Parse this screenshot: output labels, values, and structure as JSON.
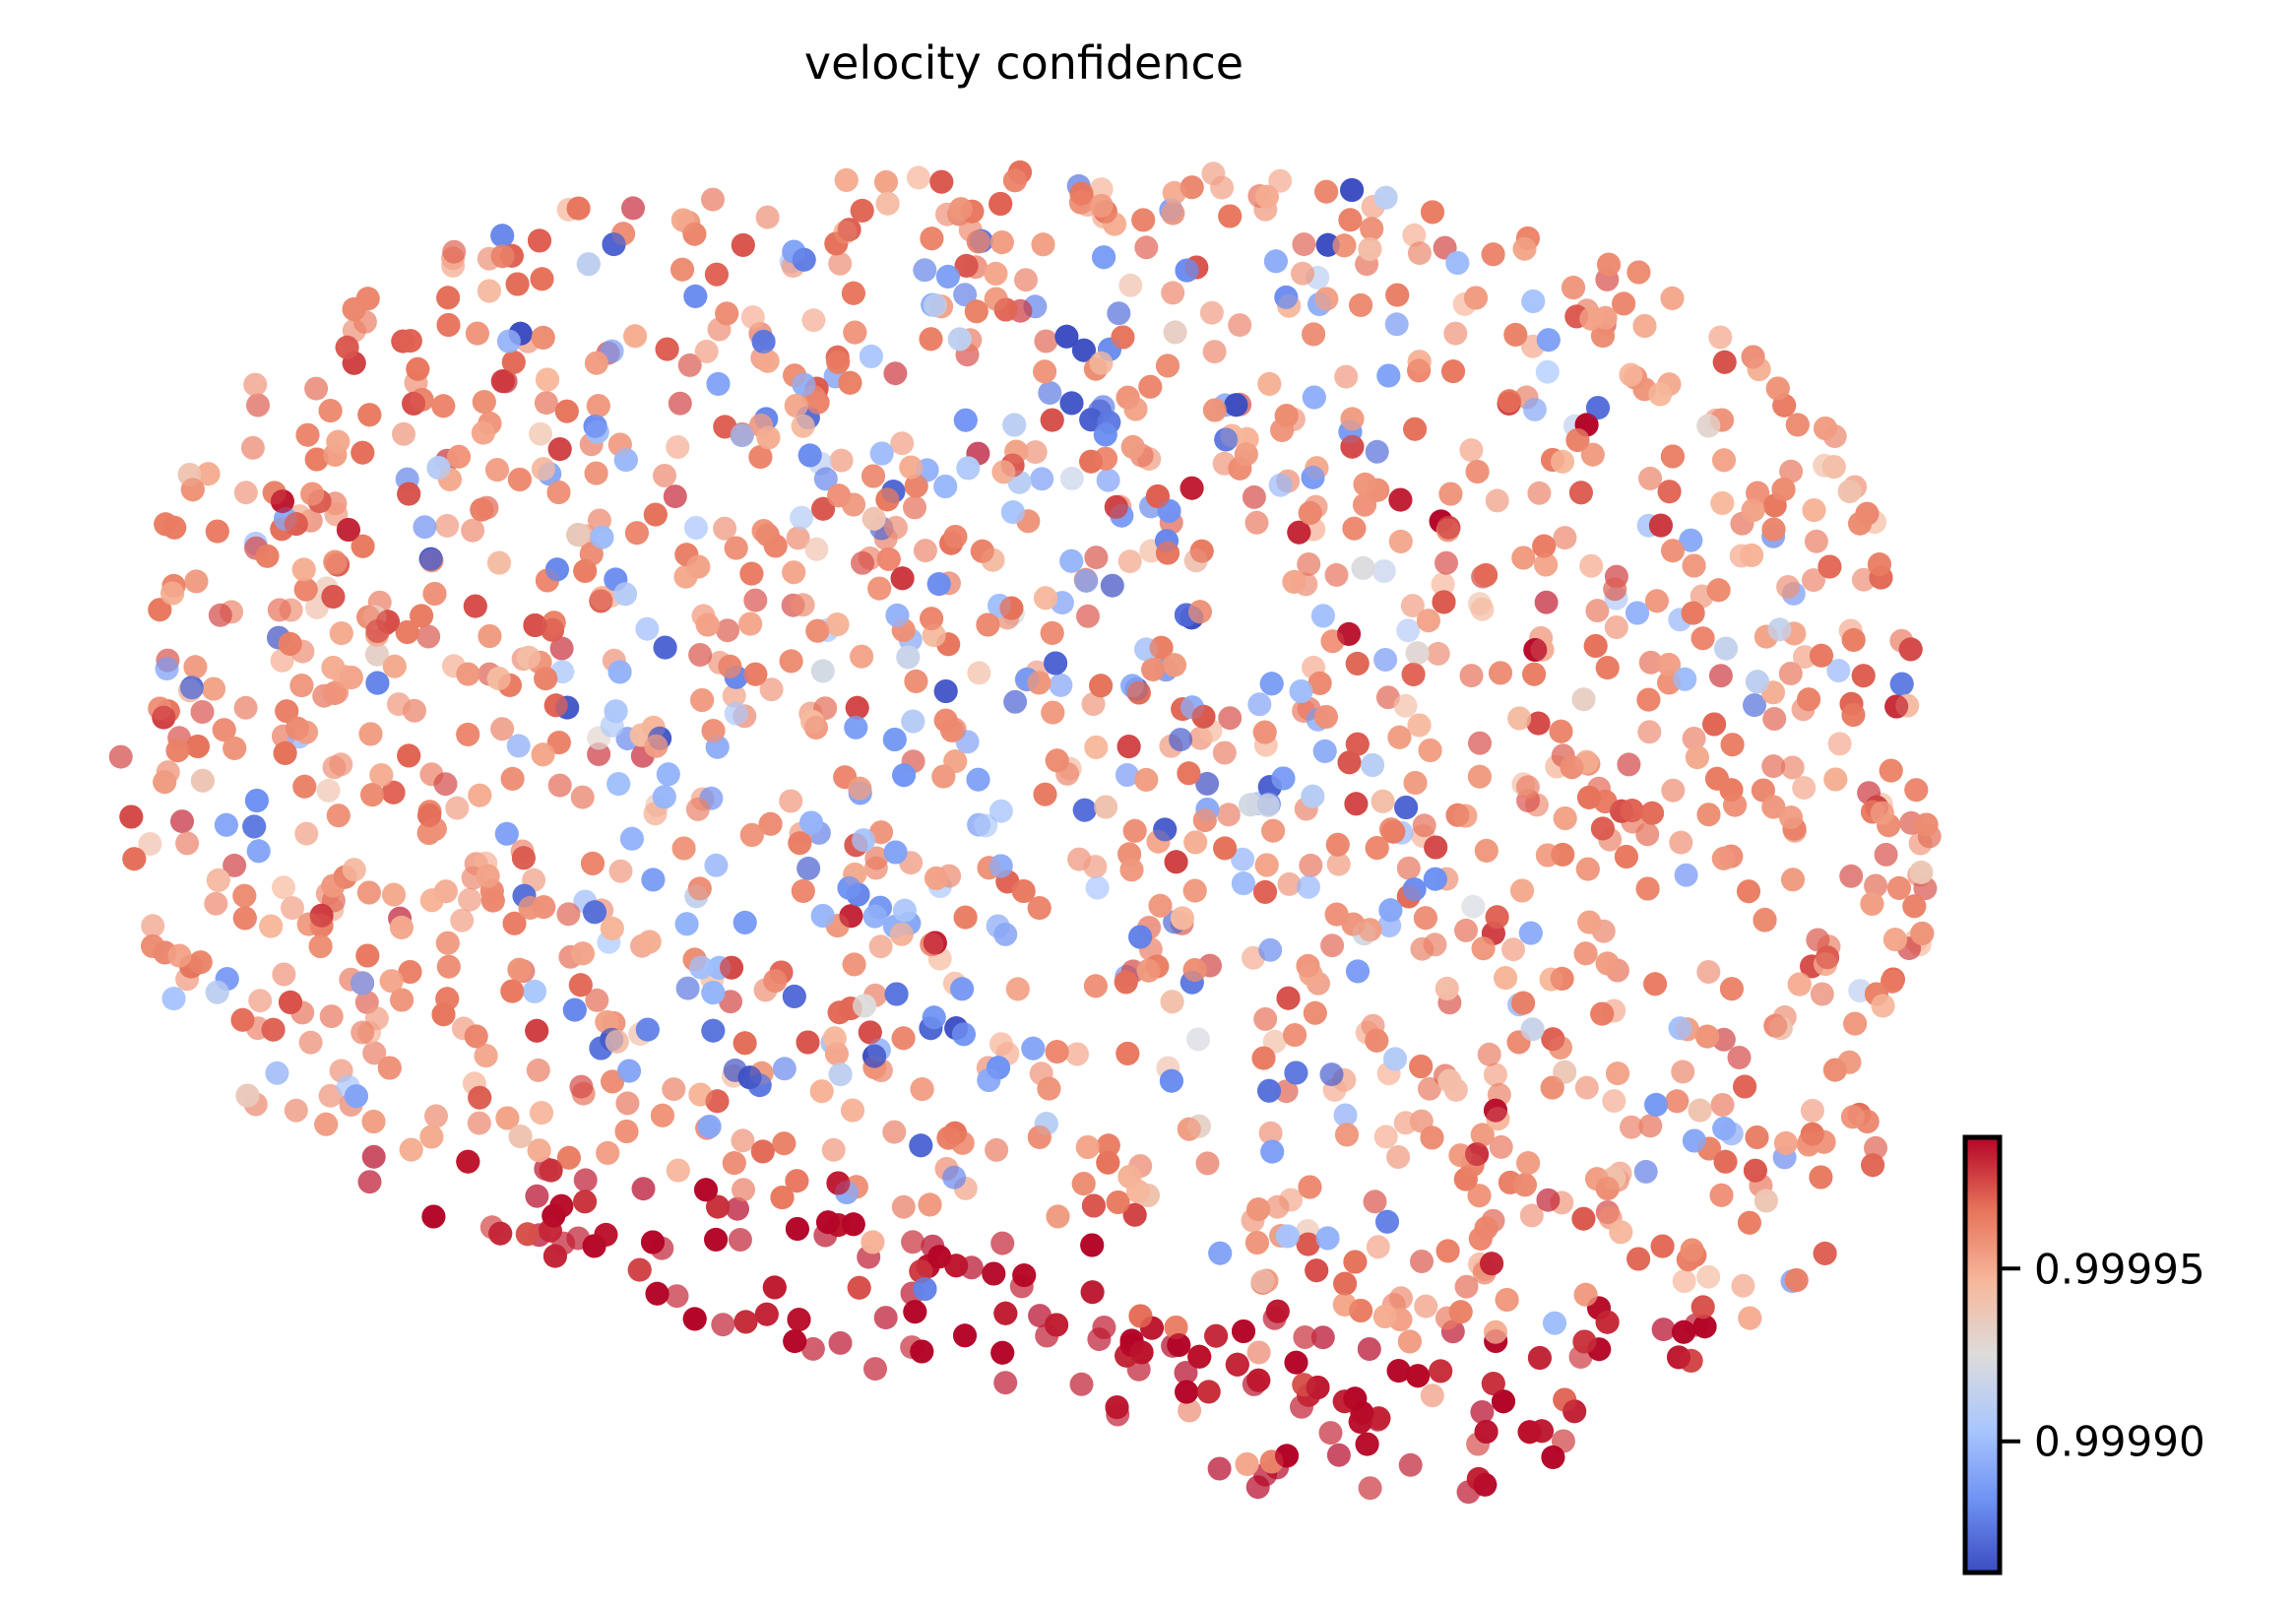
{
  "chart_data": {
    "type": "scatter",
    "title": "velocity confidence",
    "xlabel": "",
    "ylabel": "",
    "axes_visible": false,
    "grid": false,
    "n_points_approx": 4000,
    "marker_alpha": 0.7,
    "colormap": "coolwarm",
    "colormap_stops": [
      "#3b4cc0",
      "#6f92f3",
      "#aac7fd",
      "#dddcdc",
      "#f7b89c",
      "#e7745b",
      "#b40426"
    ],
    "colorbar": {
      "placement": "bottom-right",
      "range": [
        0.999862,
        0.999988
      ],
      "ticks": [
        0.9999,
        0.99995
      ],
      "tick_labels": [
        "0.99990",
        "0.99995"
      ]
    },
    "value_distribution": {
      "typical": 0.99996,
      "lower_band": 0.999985,
      "blue_patch_center_upper": 0.99989
    }
  }
}
